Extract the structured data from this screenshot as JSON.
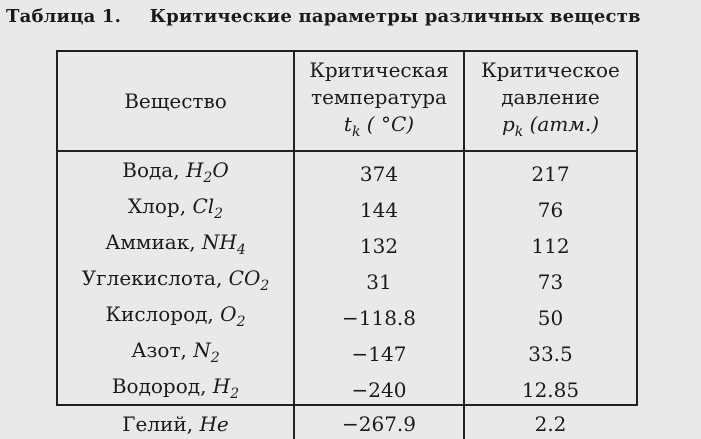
{
  "caption": {
    "label": "Таблица 1.",
    "text": "Критические параметры различных веществ"
  },
  "table": {
    "headers": {
      "substance": "Вещество",
      "temperature": {
        "line1": "Критическая",
        "line2": "температура",
        "line3": "t_k ( °C)"
      },
      "pressure": {
        "line1": "Критическое",
        "line2": "давление",
        "line3": "p_k (атм.)"
      }
    },
    "rows": [
      {
        "name": "Вода,",
        "formula": "H2O",
        "t": "374",
        "p": "217"
      },
      {
        "name": "Хлор,",
        "formula": "Cl2",
        "t": "144",
        "p": "76"
      },
      {
        "name": "Аммиак,",
        "formula": "NH4",
        "t": "132",
        "p": "112"
      },
      {
        "name": "Углекислота,",
        "formula": "CO2",
        "t": "31",
        "p": "73"
      },
      {
        "name": "Кислород,",
        "formula": "O2",
        "t": "−118.8",
        "p": "50"
      },
      {
        "name": "Азот,",
        "formula": "N2",
        "t": "−147",
        "p": "33.5"
      },
      {
        "name": "Водород,",
        "formula": "H2",
        "t": "−240",
        "p": "12.85"
      },
      {
        "name": "Гелий,",
        "formula": "He",
        "t": "−267.9",
        "p": "2.2"
      }
    ]
  }
}
